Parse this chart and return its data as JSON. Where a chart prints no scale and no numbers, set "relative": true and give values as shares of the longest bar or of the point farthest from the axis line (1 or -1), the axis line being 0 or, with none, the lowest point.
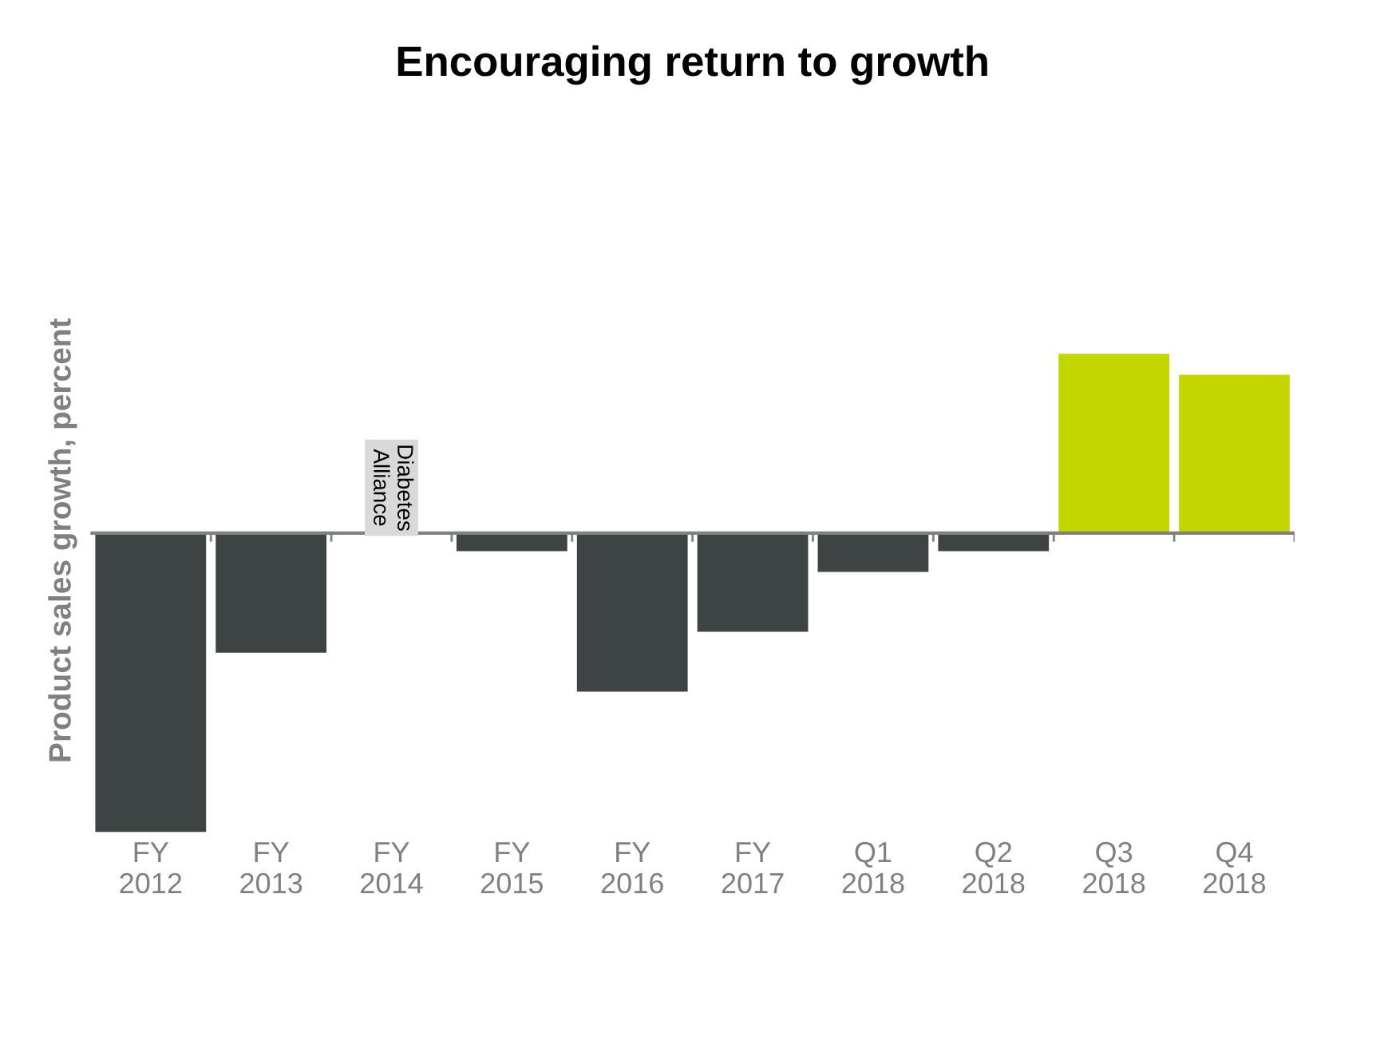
{
  "chart_data": {
    "type": "bar",
    "title": "Encouraging return to growth",
    "ylabel": "Product sales growth, percent",
    "categories": [
      "FY\n2012",
      "FY\n2013",
      "FY\n2014",
      "FY\n2015",
      "FY\n2016",
      "FY\n2017",
      "Q1\n2018",
      "Q2\n2018",
      "Q3\n2018",
      "Q4\n2018"
    ],
    "values": [
      -1,
      -0.4,
      null,
      -0.06,
      -0.53,
      -0.33,
      -0.13,
      -0.06,
      0.6,
      0.53
    ],
    "colors": [
      "#3d4443",
      "#3d4443",
      "#3d4443",
      "#3d4443",
      "#3d4443",
      "#3d4443",
      "#3d4443",
      "#3d4443",
      "#c4d600",
      "#c4d600"
    ],
    "relative": true,
    "grid": false,
    "legend": false,
    "annotations": [
      "Diabetes Alliance"
    ]
  }
}
